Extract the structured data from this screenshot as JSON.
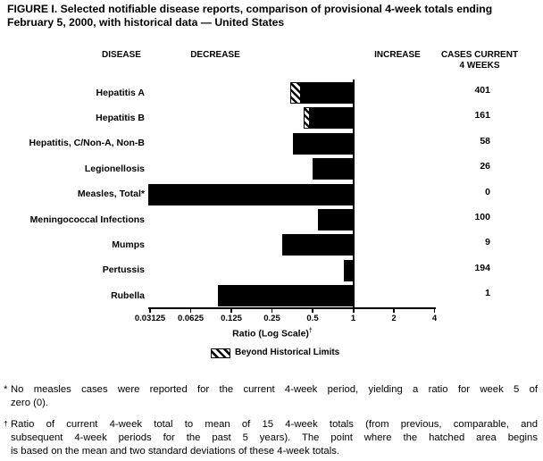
{
  "title": "FIGURE I. Selected notifiable disease reports, comparison of provisional 4-week totals ending February 5, 2000, with historical data — United States",
  "header": {
    "disease": "DISEASE",
    "decrease": "DECREASE",
    "increase": "INCREASE",
    "cases_line1": "CASES CURRENT",
    "cases_line2": "4 WEEKS"
  },
  "chart_data": {
    "type": "bar",
    "orientation": "horizontal",
    "scale": "log",
    "xlabel": "Ratio (Log Scale)",
    "xlabel_footnote_marker": "†",
    "xlim": [
      0.03125,
      4
    ],
    "baseline": 1,
    "xticks": [
      0.03125,
      0.0625,
      0.125,
      0.25,
      0.5,
      1,
      2,
      4
    ],
    "xtick_labels": [
      "0.03125",
      "0.0625",
      "0.125",
      "0.25",
      "0.5",
      "1",
      "2",
      "4"
    ],
    "grid": false,
    "colors": {
      "bar": "#000000",
      "background": "#ffffff"
    },
    "legend": [
      {
        "label": "Beyond Historical Limits",
        "pattern": "diagonal-hatch"
      }
    ],
    "rows": [
      {
        "disease": "Hepatitis A",
        "ratio": 0.34,
        "beyond_limit": true,
        "limit_ratio": 0.41,
        "cases": "401"
      },
      {
        "disease": "Hepatitis B",
        "ratio": 0.43,
        "beyond_limit": true,
        "limit_ratio": 0.48,
        "cases": "161"
      },
      {
        "disease": "Hepatitis, C/Non-A, Non-B",
        "ratio": 0.36,
        "beyond_limit": false,
        "limit_ratio": null,
        "cases": "58"
      },
      {
        "disease": "Legionellosis",
        "ratio": 0.5,
        "beyond_limit": false,
        "limit_ratio": null,
        "cases": "26"
      },
      {
        "disease": "Measles, Total*",
        "ratio": 0,
        "beyond_limit": false,
        "limit_ratio": null,
        "cases": "0"
      },
      {
        "disease": "Meningococcal Infections",
        "ratio": 0.55,
        "beyond_limit": false,
        "limit_ratio": null,
        "cases": "100"
      },
      {
        "disease": "Mumps",
        "ratio": 0.3,
        "beyond_limit": false,
        "limit_ratio": null,
        "cases": "9"
      },
      {
        "disease": "Pertussis",
        "ratio": 0.85,
        "beyond_limit": false,
        "limit_ratio": null,
        "cases": "194"
      },
      {
        "disease": "Rubella",
        "ratio": 0.1,
        "beyond_limit": false,
        "limit_ratio": null,
        "cases": "1"
      }
    ]
  },
  "footnotes": [
    {
      "marker": "*",
      "lines": [
        "No measles cases were reported for the current 4-week period, yielding a ratio for week 5 of",
        "zero (0)."
      ]
    },
    {
      "marker": "†",
      "lines": [
        "Ratio of current 4-week total to mean of 15 4-week totals (from previous, comparable, and",
        "subsequent 4-week periods for the past 5 years). The point where the hatched area begins",
        "is based on the mean and two standard deviations of these 4-week totals."
      ]
    }
  ]
}
